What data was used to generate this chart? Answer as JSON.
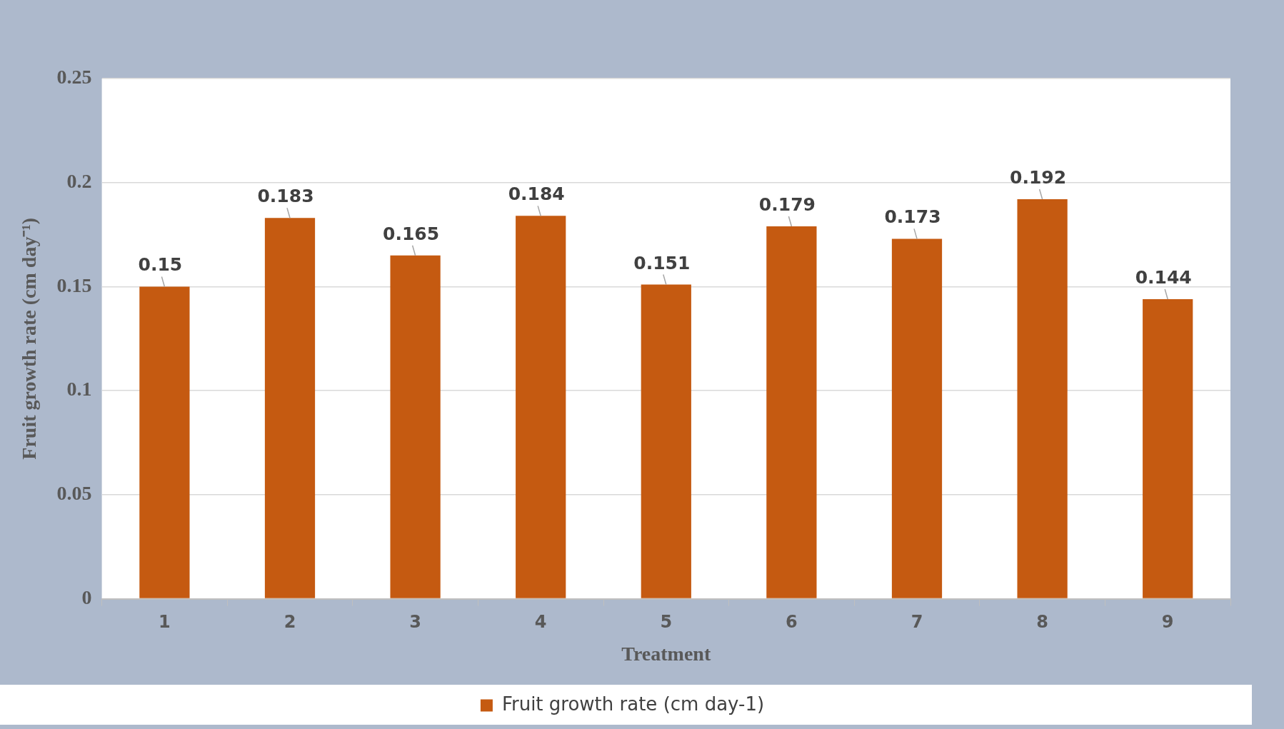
{
  "chart_data": {
    "type": "bar",
    "xlabel": "Treatment",
    "ylabel": "Fruit growth rate (cm day⁻¹)",
    "categories": [
      "1",
      "2",
      "3",
      "4",
      "5",
      "6",
      "7",
      "8",
      "9"
    ],
    "series": [
      {
        "name": "Fruit growth rate (cm day-1)",
        "color": "#c55a11",
        "values": [
          0.15,
          0.183,
          0.165,
          0.184,
          0.151,
          0.179,
          0.173,
          0.192,
          0.144
        ]
      }
    ],
    "ylim": [
      0,
      0.25
    ],
    "yticks": [
      0,
      0.05,
      0.1,
      0.15,
      0.2,
      0.25
    ],
    "grid": "y",
    "legend": "bottom",
    "data_labels": true
  }
}
